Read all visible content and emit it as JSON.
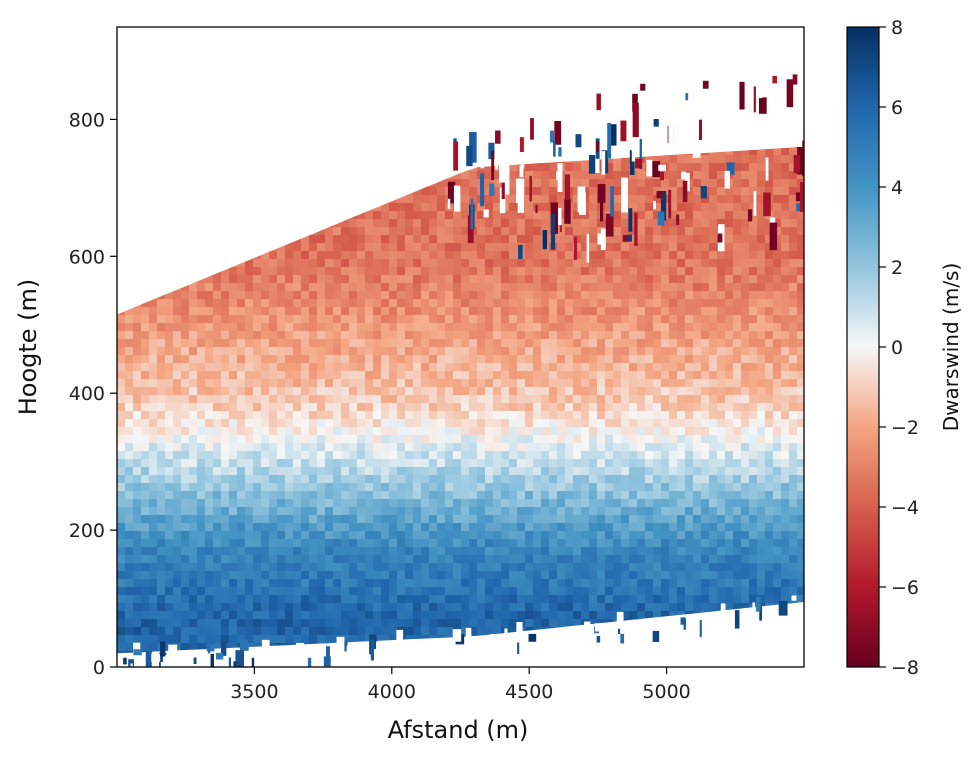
{
  "chart_data": {
    "type": "heatmap",
    "title": "",
    "xlabel": "Afstand (m)",
    "ylabel": "Hoogte (m)",
    "xlim": [
      3000,
      5500
    ],
    "ylim": [
      0,
      935
    ],
    "x_ticks": [
      3500,
      4000,
      4500,
      5000
    ],
    "x_tick_labels": [
      "3500",
      "4000",
      "4500",
      "5000"
    ],
    "y_ticks": [
      0,
      200,
      400,
      600,
      800
    ],
    "y_tick_labels": [
      "0",
      "200",
      "400",
      "600",
      "800"
    ],
    "colorbar": {
      "label": "Dwarswind (m/s)",
      "range": [
        -8,
        8
      ],
      "colormap": "RdBu",
      "ticks": [
        8,
        6,
        4,
        2,
        0,
        -2,
        -4,
        -6,
        -8
      ],
      "tick_labels": [
        "8",
        "6",
        "4",
        "2",
        "0",
        "−2",
        "−4",
        "−6",
        "−8"
      ]
    },
    "field_description": {
      "top_boundary": [
        {
          "afstand": 3000,
          "hoogte": 515
        },
        {
          "afstand": 4300,
          "hoogte": 730
        },
        {
          "afstand": 5500,
          "hoogte": 760
        }
      ],
      "bottom_boundary": [
        {
          "afstand": 3000,
          "hoogte": 20
        },
        {
          "afstand": 4300,
          "hoogte": 45
        },
        {
          "afstand": 5500,
          "hoogte": 95
        }
      ],
      "layers": [
        {
          "hoogte_min": 430,
          "hoogte_max": 760,
          "dwarswind": -3.5
        },
        {
          "hoogte_min": 330,
          "hoogte_max": 430,
          "dwarswind": -1.0
        },
        {
          "hoogte_min": 230,
          "hoogte_max": 330,
          "dwarswind": 1.5
        },
        {
          "hoogte_min": 120,
          "hoogte_max": 230,
          "dwarswind": 4.5
        },
        {
          "hoogte_min": 20,
          "hoogte_max": 120,
          "dwarswind": 6.0
        }
      ]
    }
  },
  "colors": {
    "dark_red": "#67001f",
    "red": "#d6604d",
    "light_red": "#f4a582",
    "white": "#f7f7f7",
    "light_blue": "#92c5de",
    "blue": "#4393c3",
    "dark_blue": "#053061"
  }
}
